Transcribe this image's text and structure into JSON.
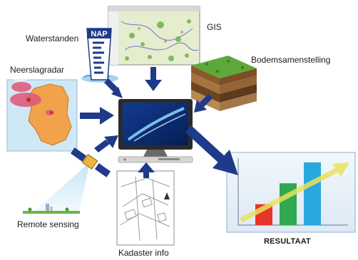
{
  "labels": {
    "waterstanden": "Waterstanden",
    "gis": "GIS",
    "bodemsamenstelling": "Bodemsamenstelling",
    "neerslagradar": "Neerslagradar",
    "remote_sensing": "Remote sensing",
    "kadaster_info": "Kadaster info",
    "resultaat": "RESULTAAT",
    "nap": "NAP"
  },
  "result_chart": {
    "type": "bar",
    "values": [
      1,
      2,
      3
    ],
    "colors": [
      "#e8332a",
      "#2fa84f",
      "#29a8e0"
    ]
  },
  "colors": {
    "arrow": "#1f3a8a",
    "panel_bg": "#e9f1fa",
    "screen": "#0b2a6e"
  }
}
